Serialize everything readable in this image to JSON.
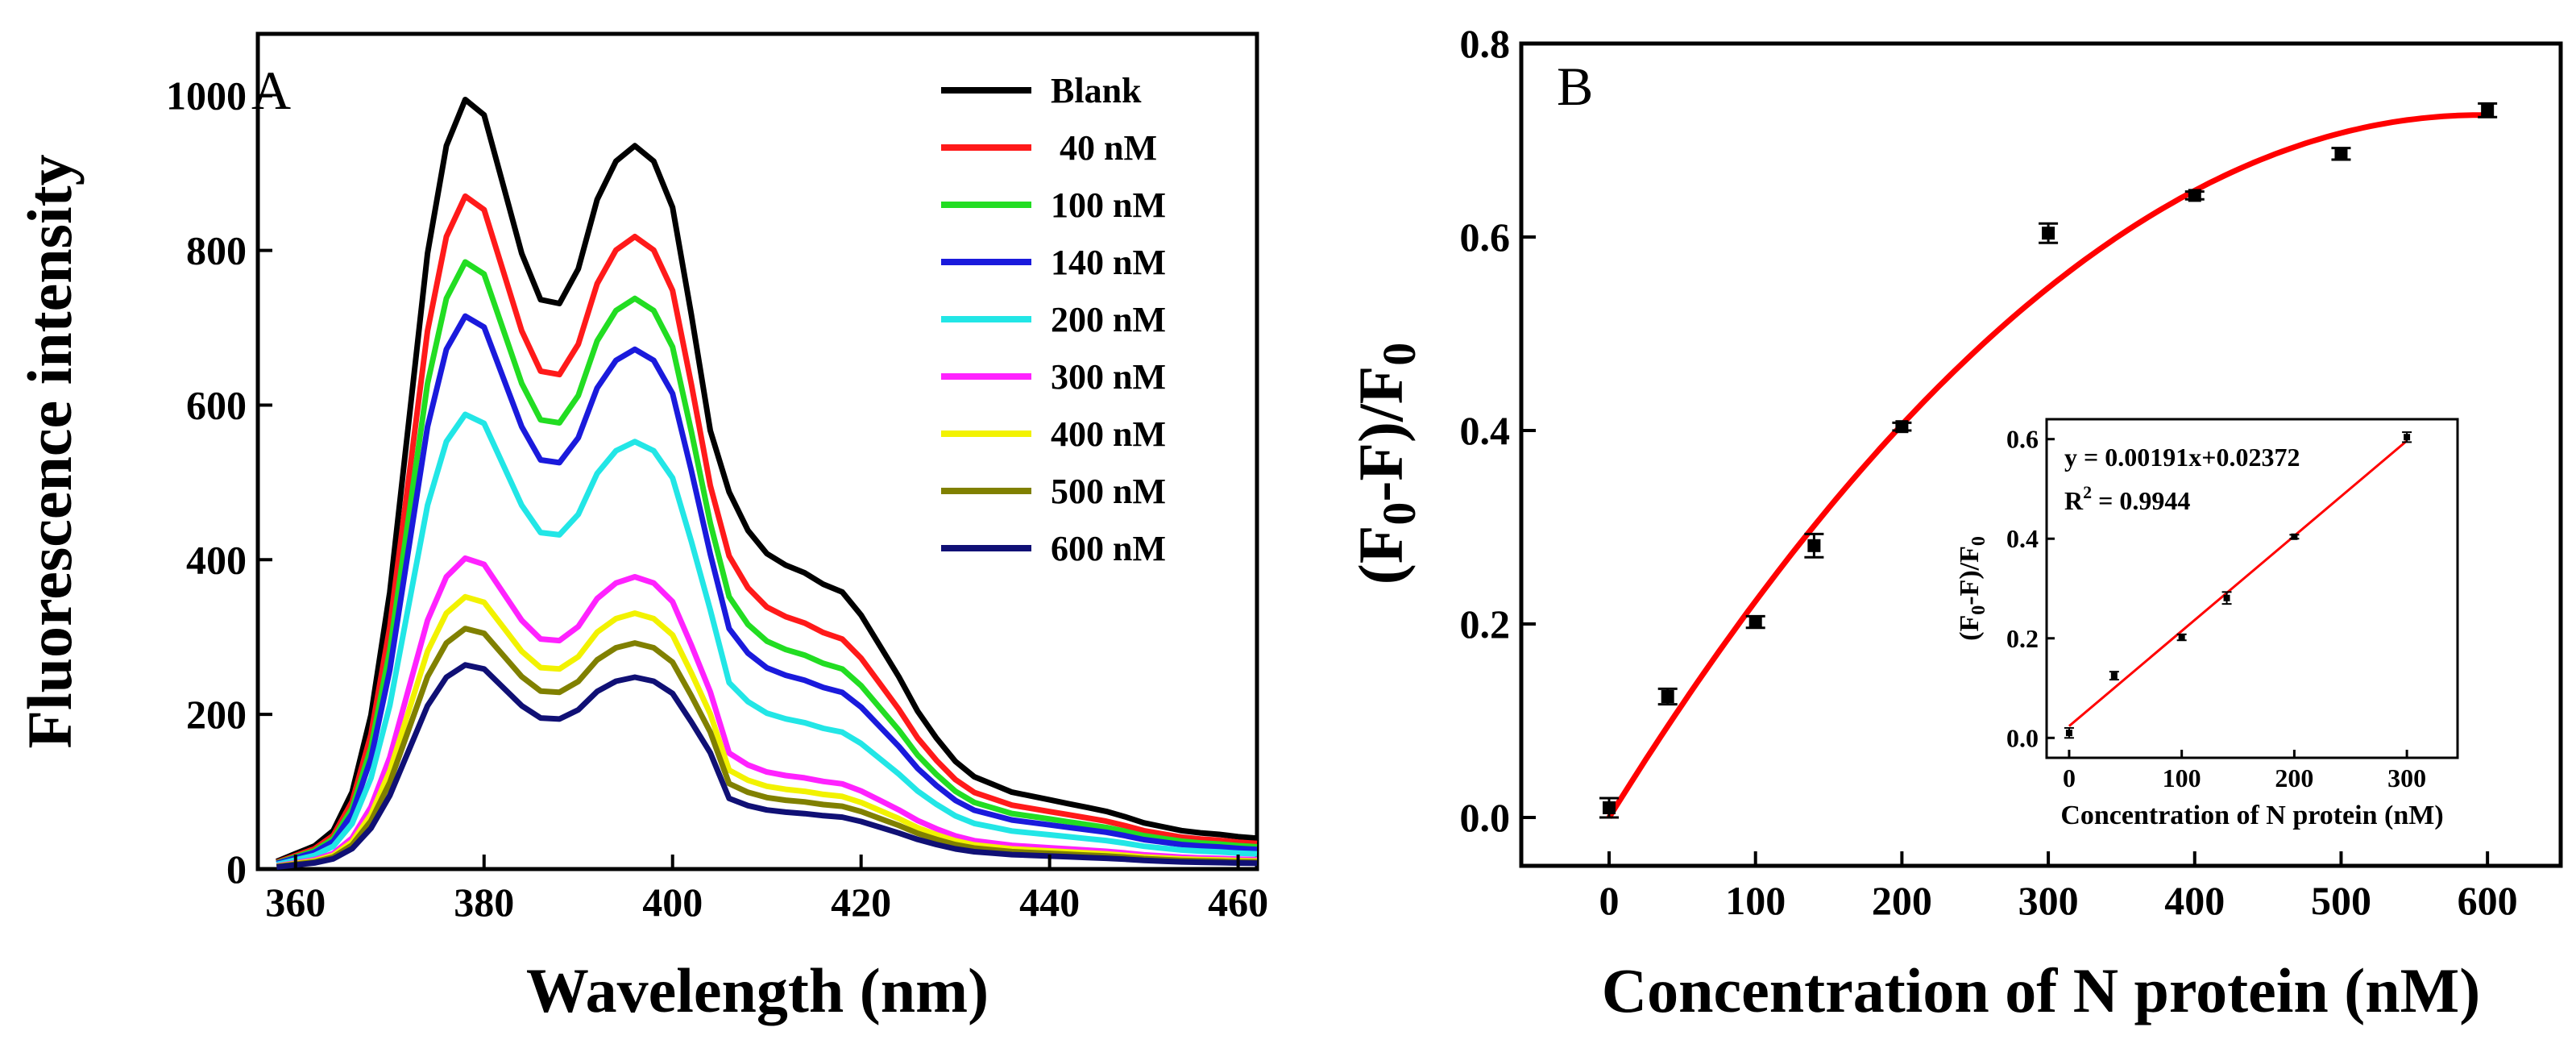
{
  "chart_data": [
    {
      "panel": "A",
      "type": "line",
      "xlabel": "Wavelength (nm)",
      "ylabel": "Fluorescence intensity",
      "xlim": [
        356,
        462
      ],
      "ylim": [
        0,
        1080
      ],
      "xticks": [
        360,
        380,
        400,
        420,
        440,
        460
      ],
      "yticks": [
        0,
        200,
        400,
        600,
        800,
        1000
      ],
      "legend_position": "top-right",
      "x": [
        358,
        360,
        362,
        364,
        366,
        368,
        370,
        372,
        374,
        376,
        378,
        380,
        382,
        384,
        386,
        388,
        390,
        392,
        394,
        396,
        398,
        400,
        402,
        404,
        406,
        408,
        410,
        412,
        414,
        416,
        418,
        420,
        422,
        424,
        426,
        428,
        430,
        432,
        434,
        436,
        438,
        440,
        442,
        444,
        446,
        448,
        450,
        452,
        454,
        456,
        458,
        460,
        462
      ],
      "reference_shape": [
        0.01,
        0.02,
        0.03,
        0.05,
        0.1,
        0.2,
        0.36,
        0.58,
        0.8,
        0.94,
        1.0,
        0.98,
        0.89,
        0.8,
        0.74,
        0.735,
        0.78,
        0.87,
        0.92,
        0.94,
        0.92,
        0.86,
        0.72,
        0.57,
        0.49,
        0.44,
        0.41,
        0.395,
        0.385,
        0.37,
        0.36,
        0.33,
        0.29,
        0.25,
        0.205,
        0.17,
        0.14,
        0.12,
        0.11,
        0.1,
        0.095,
        0.09,
        0.085,
        0.08,
        0.075,
        0.068,
        0.06,
        0.055,
        0.05,
        0.047,
        0.045,
        0.042,
        0.04
      ],
      "series": [
        {
          "name": "Blank",
          "color": "#000000",
          "peak": 995
        },
        {
          "name": " 40 nM",
          "color": "#ff1a1a",
          "peak": 870
        },
        {
          "name": "100 nM",
          "color": "#22dd22",
          "peak": 785
        },
        {
          "name": "140 nM",
          "color": "#1a1adc",
          "peak": 715
        },
        {
          "name": "200 nM",
          "color": "#22e6e6",
          "peak": 588
        },
        {
          "name": "300 nM",
          "color": "#ff22ff",
          "peak": 402
        },
        {
          "name": "400 nM",
          "color": "#f2f200",
          "peak": 352
        },
        {
          "name": "500 nM",
          "color": "#808000",
          "peak": 311
        },
        {
          "name": "600 nM",
          "color": "#101075",
          "peak": 264
        }
      ]
    },
    {
      "panel": "B",
      "type": "scatter",
      "xlabel": "Concentration of N protein (nM)",
      "ylabel": "(F0-F)/F0",
      "xlim": [
        -60,
        650
      ],
      "ylim": [
        -0.05,
        0.8
      ],
      "xticks": [
        0,
        100,
        200,
        300,
        400,
        500,
        600
      ],
      "yticks": [
        0.0,
        0.2,
        0.4,
        0.6,
        0.8
      ],
      "x": [
        0,
        40,
        100,
        140,
        200,
        300,
        400,
        500,
        600
      ],
      "y": [
        0.01,
        0.125,
        0.202,
        0.281,
        0.404,
        0.604,
        0.643,
        0.686,
        0.731
      ],
      "error": [
        0.01,
        0.008,
        0.006,
        0.012,
        0.004,
        0.01,
        0.004,
        0.006,
        0.007
      ],
      "fit_color": "#ff0000",
      "fit_curve": {
        "type": "quadratic",
        "a": -2.05e-06,
        "b": 0.00244,
        "c": 0.0
      },
      "inset": {
        "type": "scatter",
        "xlabel": "Concentration of N protein (nM)",
        "ylabel": "(F0-F)/F0",
        "xlim": [
          -20,
          345
        ],
        "ylim": [
          -0.04,
          0.64
        ],
        "xticks": [
          0,
          100,
          200,
          300
        ],
        "yticks": [
          0.0,
          0.2,
          0.4,
          0.6
        ],
        "x": [
          0,
          40,
          100,
          140,
          200,
          300
        ],
        "y": [
          0.01,
          0.125,
          0.202,
          0.281,
          0.404,
          0.604
        ],
        "error": [
          0.01,
          0.008,
          0.006,
          0.012,
          0.004,
          0.01
        ],
        "fit_color": "#ff0000",
        "fit": {
          "slope": 0.00191,
          "intercept": 0.02372
        },
        "equation": "y = 0.00191x+0.02372",
        "r2_label": "R",
        "r2_sup": "2",
        "r2_value": " = 0.9944"
      }
    }
  ],
  "labels": {
    "panel_a": "A",
    "panel_b": "B",
    "a_xlabel": "Wavelength (nm)",
    "a_ylabel": "Fluorescence intensity",
    "b_xlabel": "Concentration of N protein (nM)",
    "b_ylabel_open": "(F",
    "b_ylabel_sub1": "0",
    "b_ylabel_mid": "-F)/F",
    "b_ylabel_sub2": "0",
    "inset_xlabel": "Concentration of N protein (nM)"
  }
}
